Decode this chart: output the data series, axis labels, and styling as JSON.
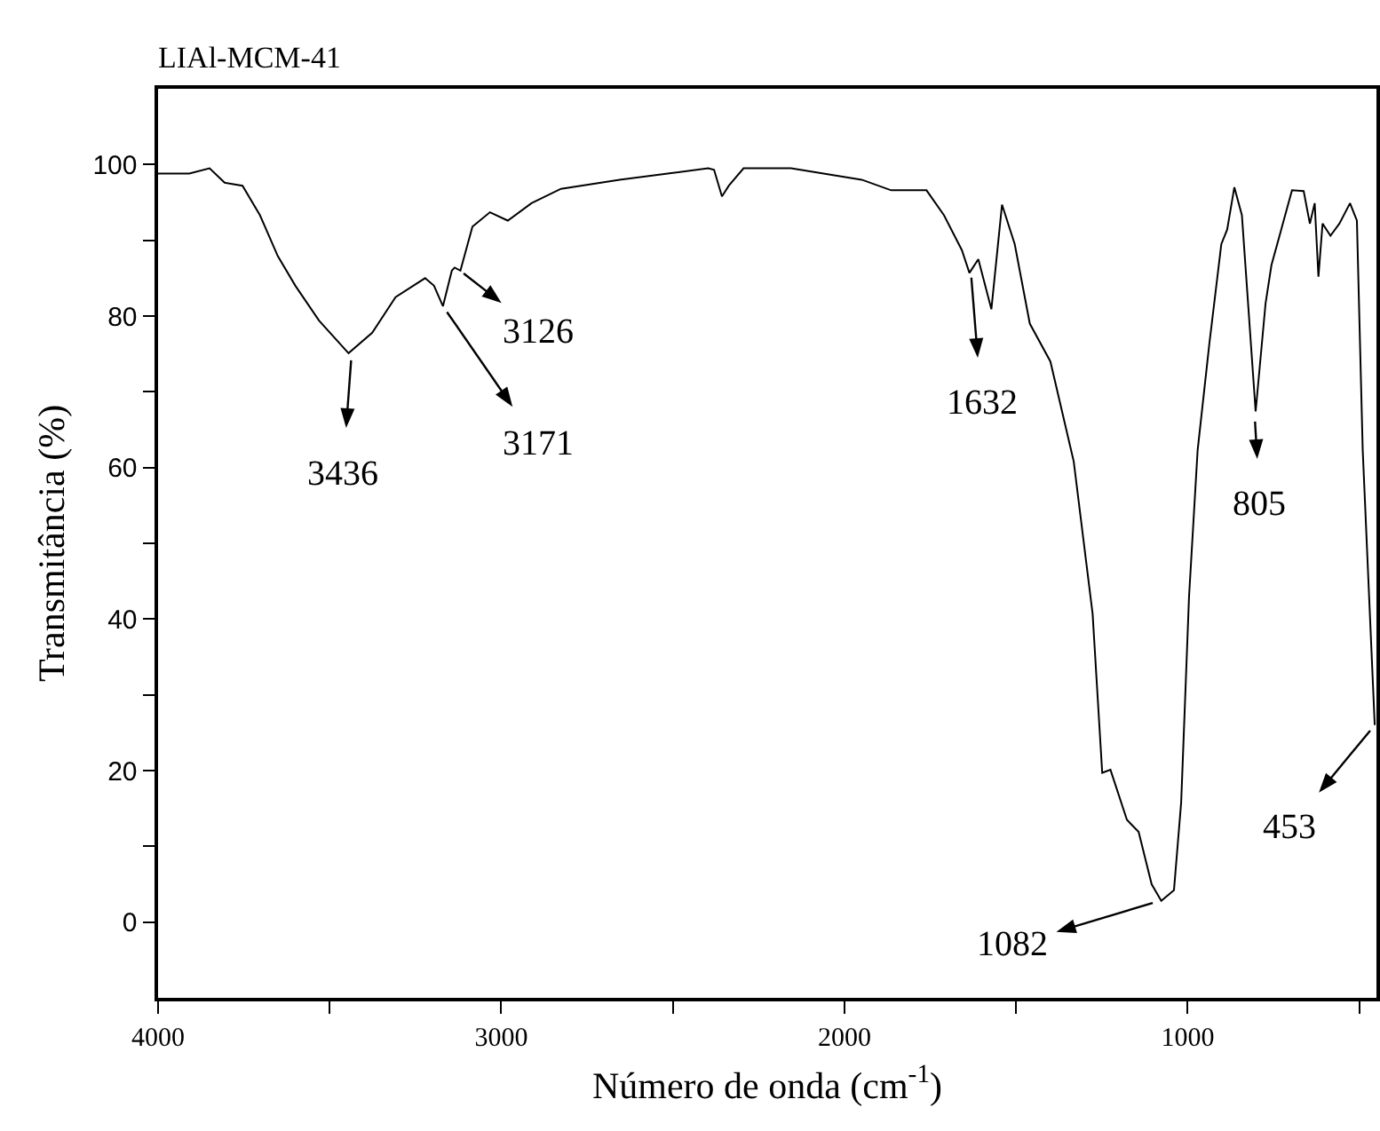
{
  "chart_data": {
    "type": "line",
    "title": "LIAl-MCM-41",
    "xlabel": "Número de onda (cm$^{-1}$)",
    "ylabel": "Transmitância (%)",
    "x": [
      4000,
      3909,
      3850,
      3806,
      3754,
      3703,
      3651,
      3600,
      3531,
      3445,
      3376,
      3308,
      3222,
      3196,
      3170,
      3144,
      3136,
      3119,
      3084,
      3033,
      2981,
      2912,
      2826,
      2655,
      2500,
      2397,
      2380,
      2357,
      2337,
      2294,
      2156,
      1950,
      1864,
      1761,
      1710,
      1658,
      1636,
      1610,
      1572,
      1541,
      1504,
      1460,
      1400,
      1332,
      1277,
      1249,
      1225,
      1177,
      1143,
      1105,
      1077,
      1040,
      1019,
      996,
      971,
      937,
      902,
      885,
      864,
      842,
      802,
      773,
      756,
      730,
      696,
      662,
      644,
      630,
      619,
      607,
      584,
      558,
      527,
      507,
      490,
      455
    ],
    "series": [
      {
        "color": "#000000",
        "values": [
          98.8,
          98.8,
          99.5,
          97.6,
          97.2,
          93.3,
          87.9,
          84.0,
          79.4,
          75.1,
          77.8,
          82.5,
          85.0,
          84.0,
          81.3,
          86.0,
          86.4,
          86.0,
          91.8,
          93.7,
          92.6,
          94.9,
          96.8,
          98.0,
          98.9,
          99.5,
          99.3,
          95.8,
          97.2,
          99.5,
          99.5,
          98.0,
          96.6,
          96.6,
          93.3,
          88.7,
          85.7,
          87.5,
          80.9,
          94.7,
          89.5,
          79.0,
          74.0,
          60.8,
          40.7,
          19.7,
          20.1,
          13.5,
          11.9,
          5.0,
          2.8,
          4.2,
          15.8,
          43.0,
          62.3,
          76.3,
          89.5,
          91.4,
          97.0,
          93.3,
          67.4,
          81.7,
          86.7,
          91.0,
          96.6,
          96.5,
          92.2,
          94.9,
          85.2,
          92.2,
          90.6,
          92.2,
          94.9,
          92.6,
          62.3,
          26.0
        ]
      }
    ],
    "xlim": [
      4000,
      450
    ],
    "xticks": [
      4000,
      {
        "value": 3500,
        "label": null
      },
      3000,
      {
        "value": 2500,
        "label": null
      },
      2000,
      {
        "value": 1500,
        "label": null
      },
      1000,
      {
        "value": 500,
        "label": null
      }
    ],
    "ylim": [
      -10,
      110
    ],
    "yticks": [
      0,
      {
        "value": 10,
        "label": null
      },
      20,
      {
        "value": 30,
        "label": null
      },
      40,
      {
        "value": 50,
        "label": null
      },
      60,
      {
        "value": 70,
        "label": null
      },
      80,
      {
        "value": 90,
        "label": null
      },
      100
    ],
    "annotations": [
      {
        "text": "3436",
        "x": 3436,
        "y": 75.1
      },
      {
        "text": "3171",
        "x": 3170,
        "y": 81.3
      },
      {
        "text": "3126",
        "x": 3126,
        "y": 86.2
      },
      {
        "text": "1632",
        "x": 1632,
        "y": 86
      },
      {
        "text": "1082",
        "x": 1082,
        "y": 2.8
      },
      {
        "text": "805",
        "x": 805,
        "y": 67
      },
      {
        "text": "453",
        "x": 455,
        "y": 26
      }
    ],
    "grid": false,
    "line_style": "solid",
    "marker": "none"
  }
}
